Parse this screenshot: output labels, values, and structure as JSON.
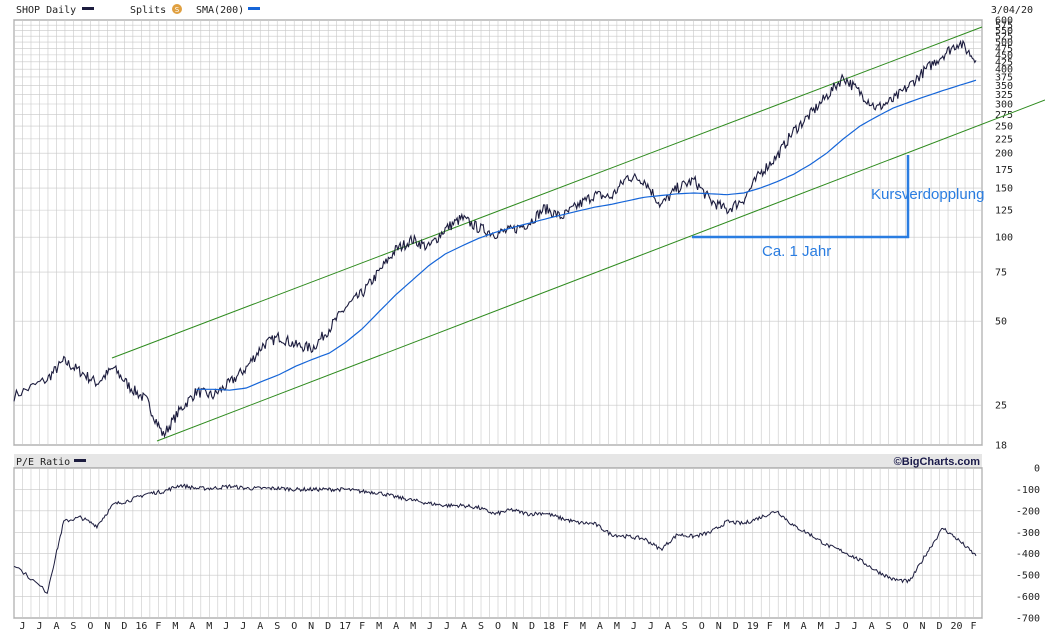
{
  "colors": {
    "price": "#1c1c3e",
    "sma": "#1565d8",
    "channel": "#2e8b1e",
    "annotation": "#2a7de1",
    "grid": "#c8c8c8",
    "border": "#555555",
    "header_bg": "#e6e6e6"
  },
  "header": {
    "symbol_label": "SHOP Daily",
    "splits_label": "Splits",
    "splits_icon": "S",
    "sma_label": "SMA(200)",
    "date": "3/04/20"
  },
  "pe_header": {
    "label": "P/E Ratio",
    "credit": "©BigCharts.com"
  },
  "annotations": {
    "doubling": "Kursverdopplung",
    "one_year": "Ca. 1 Jahr"
  },
  "x_axis": {
    "labels": [
      "J",
      "J",
      "A",
      "S",
      "O",
      "N",
      "D",
      "16",
      "F",
      "M",
      "A",
      "M",
      "J",
      "J",
      "A",
      "S",
      "O",
      "N",
      "D",
      "17",
      "F",
      "M",
      "A",
      "M",
      "J",
      "J",
      "A",
      "S",
      "O",
      "N",
      "D",
      "18",
      "F",
      "M",
      "A",
      "M",
      "J",
      "J",
      "A",
      "S",
      "O",
      "N",
      "D",
      "19",
      "F",
      "M",
      "A",
      "M",
      "J",
      "J",
      "A",
      "S",
      "O",
      "N",
      "D",
      "20",
      "F"
    ]
  },
  "chart_data": [
    {
      "type": "line",
      "title": "SHOP Daily",
      "scale": "log",
      "ylim": [
        18,
        600
      ],
      "y_ticks": [
        600,
        575,
        550,
        525,
        500,
        475,
        450,
        425,
        400,
        375,
        350,
        325,
        300,
        275,
        250,
        225,
        200,
        175,
        150,
        125,
        100,
        75,
        50,
        25,
        18
      ],
      "x": [
        "2015-05",
        "2015-07",
        "2015-08",
        "2015-09",
        "2015-10",
        "2015-11",
        "2015-12",
        "2016-01",
        "2016-02",
        "2016-03",
        "2016-04",
        "2016-05",
        "2016-06",
        "2016-07",
        "2016-08",
        "2016-09",
        "2016-10",
        "2016-11",
        "2016-12",
        "2017-01",
        "2017-02",
        "2017-03",
        "2017-04",
        "2017-05",
        "2017-06",
        "2017-07",
        "2017-08",
        "2017-09",
        "2017-10",
        "2017-11",
        "2017-12",
        "2018-01",
        "2018-02",
        "2018-03",
        "2018-04",
        "2018-05",
        "2018-06",
        "2018-07",
        "2018-08",
        "2018-09",
        "2018-10",
        "2018-11",
        "2018-12",
        "2019-01",
        "2019-02",
        "2019-03",
        "2019-04",
        "2019-05",
        "2019-06",
        "2019-07",
        "2019-08",
        "2019-09",
        "2019-10",
        "2019-11",
        "2019-12",
        "2020-01",
        "2020-02",
        "2020-03"
      ],
      "series": [
        {
          "name": "SHOP Daily",
          "values": [
            27,
            31,
            36,
            33,
            30,
            34,
            29,
            26,
            19.5,
            24,
            28,
            27,
            30,
            34,
            41,
            44,
            41,
            40,
            47,
            56,
            63,
            75,
            90,
            98,
            92,
            107,
            117,
            108,
            103,
            106,
            112,
            127,
            118,
            130,
            142,
            139,
            165,
            160,
            130,
            150,
            160,
            135,
            125,
            137,
            170,
            195,
            240,
            275,
            320,
            375,
            330,
            290,
            310,
            350,
            400,
            450,
            500,
            430
          ]
        },
        {
          "name": "SMA(200)",
          "values": [
            null,
            null,
            null,
            null,
            null,
            null,
            null,
            null,
            null,
            null,
            28.5,
            28.5,
            28.3,
            28.8,
            30.5,
            32.2,
            34.5,
            36.5,
            38.4,
            42,
            47,
            54,
            62,
            70,
            79,
            87,
            93,
            99,
            104,
            108,
            112,
            116,
            120,
            124,
            128,
            131,
            135,
            139,
            141,
            143,
            144,
            143,
            142,
            144,
            150,
            158,
            168,
            182,
            200,
            225,
            250,
            270,
            290,
            305,
            320,
            335,
            350,
            365
          ]
        }
      ]
    },
    {
      "type": "line",
      "title": "P/E Ratio",
      "ylim": [
        -700,
        0
      ],
      "y_ticks": [
        0,
        -100,
        -200,
        -300,
        -400,
        -500,
        -600,
        -700
      ],
      "x": [
        "2015-05",
        "2015-07",
        "2015-08",
        "2015-09",
        "2015-10",
        "2015-11",
        "2015-12",
        "2016-01",
        "2016-02",
        "2016-03",
        "2016-04",
        "2016-05",
        "2016-06",
        "2016-07",
        "2016-08",
        "2016-09",
        "2016-10",
        "2016-11",
        "2016-12",
        "2017-01",
        "2017-02",
        "2017-03",
        "2017-04",
        "2017-05",
        "2017-06",
        "2017-07",
        "2017-08",
        "2017-09",
        "2017-10",
        "2017-11",
        "2017-12",
        "2018-01",
        "2018-02",
        "2018-03",
        "2018-04",
        "2018-05",
        "2018-06",
        "2018-07",
        "2018-08",
        "2018-09",
        "2018-10",
        "2018-11",
        "2018-12",
        "2019-01",
        "2019-02",
        "2019-03",
        "2019-04",
        "2019-05",
        "2019-06",
        "2019-07",
        "2019-08",
        "2019-09",
        "2019-10",
        "2019-11",
        "2019-12",
        "2020-01",
        "2020-02",
        "2020-03"
      ],
      "series": [
        {
          "name": "P/E Ratio",
          "values": [
            -450,
            -580,
            -250,
            -230,
            -270,
            -170,
            -150,
            -120,
            -110,
            -80,
            -95,
            -95,
            -85,
            -95,
            -95,
            -95,
            -100,
            -100,
            -100,
            -100,
            -110,
            -115,
            -135,
            -150,
            -165,
            -175,
            -175,
            -185,
            -215,
            -195,
            -215,
            -210,
            -235,
            -255,
            -260,
            -310,
            -320,
            -330,
            -380,
            -310,
            -320,
            -300,
            -250,
            -260,
            -230,
            -200,
            -270,
            -310,
            -360,
            -390,
            -430,
            -480,
            -520,
            -530,
            -400,
            -280,
            -340,
            -410
          ]
        }
      ]
    }
  ]
}
